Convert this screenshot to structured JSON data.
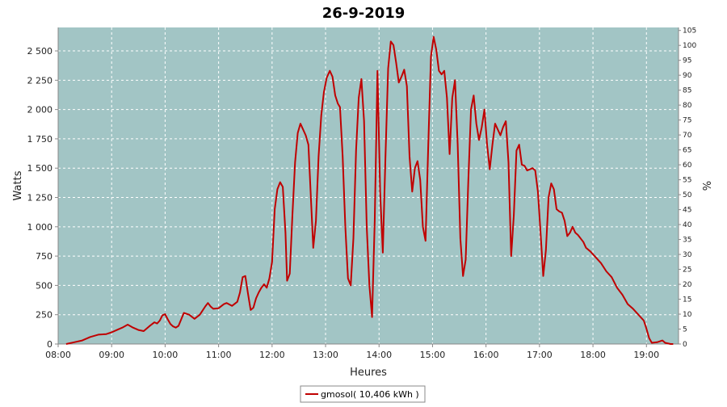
{
  "colors": {
    "plot_background": "#a2c5c5",
    "grid": "#ffffff",
    "series": "#c00000"
  },
  "chart_data": {
    "type": "line",
    "title": "26-9-2019",
    "xlabel": "Heures",
    "ylabel": "Watts",
    "y2label": "%",
    "xlim": [
      8.0,
      19.6
    ],
    "ylim": [
      0,
      2700
    ],
    "y2lim": [
      0,
      106
    ],
    "x_ticks": [
      8,
      9,
      10,
      11,
      12,
      13,
      14,
      15,
      16,
      17,
      18,
      19
    ],
    "x_tick_labels": [
      "08:00",
      "09:00",
      "10:00",
      "11:00",
      "12:00",
      "13:00",
      "14:00",
      "15:00",
      "16:00",
      "17:00",
      "18:00",
      "19:00"
    ],
    "y_ticks": [
      0,
      250,
      500,
      750,
      1000,
      1250,
      1500,
      1750,
      2000,
      2250,
      2500
    ],
    "y_tick_labels": [
      "0",
      "250",
      "500",
      "750",
      "1 000",
      "1 250",
      "1 500",
      "1 750",
      "2 000",
      "2 250",
      "2 500"
    ],
    "y2_ticks": [
      0,
      5,
      10,
      15,
      20,
      25,
      30,
      35,
      40,
      45,
      50,
      55,
      60,
      65,
      70,
      75,
      80,
      85,
      90,
      95,
      100,
      105
    ],
    "grid": true,
    "legend_position": "bottom-center",
    "series": [
      {
        "name": "gmosol( 10,406 kWh )",
        "points": [
          [
            8.15,
            0
          ],
          [
            8.3,
            15
          ],
          [
            8.45,
            30
          ],
          [
            8.6,
            60
          ],
          [
            8.75,
            80
          ],
          [
            8.9,
            85
          ],
          [
            9.0,
            100
          ],
          [
            9.1,
            120
          ],
          [
            9.2,
            140
          ],
          [
            9.3,
            165
          ],
          [
            9.4,
            140
          ],
          [
            9.5,
            120
          ],
          [
            9.6,
            110
          ],
          [
            9.7,
            150
          ],
          [
            9.8,
            185
          ],
          [
            9.85,
            175
          ],
          [
            9.9,
            200
          ],
          [
            9.95,
            245
          ],
          [
            10.0,
            255
          ],
          [
            10.05,
            210
          ],
          [
            10.1,
            170
          ],
          [
            10.15,
            150
          ],
          [
            10.2,
            140
          ],
          [
            10.25,
            155
          ],
          [
            10.3,
            210
          ],
          [
            10.35,
            265
          ],
          [
            10.45,
            250
          ],
          [
            10.55,
            215
          ],
          [
            10.65,
            250
          ],
          [
            10.75,
            320
          ],
          [
            10.8,
            350
          ],
          [
            10.85,
            320
          ],
          [
            10.9,
            300
          ],
          [
            11.0,
            305
          ],
          [
            11.1,
            340
          ],
          [
            11.15,
            350
          ],
          [
            11.25,
            325
          ],
          [
            11.35,
            360
          ],
          [
            11.4,
            440
          ],
          [
            11.45,
            570
          ],
          [
            11.5,
            580
          ],
          [
            11.55,
            430
          ],
          [
            11.6,
            290
          ],
          [
            11.65,
            310
          ],
          [
            11.7,
            390
          ],
          [
            11.75,
            440
          ],
          [
            11.8,
            480
          ],
          [
            11.85,
            510
          ],
          [
            11.9,
            480
          ],
          [
            11.95,
            560
          ],
          [
            12.0,
            700
          ],
          [
            12.05,
            1150
          ],
          [
            12.1,
            1320
          ],
          [
            12.15,
            1380
          ],
          [
            12.2,
            1340
          ],
          [
            12.25,
            950
          ],
          [
            12.28,
            540
          ],
          [
            12.33,
            600
          ],
          [
            12.38,
            1100
          ],
          [
            12.43,
            1550
          ],
          [
            12.48,
            1800
          ],
          [
            12.53,
            1880
          ],
          [
            12.58,
            1830
          ],
          [
            12.63,
            1780
          ],
          [
            12.68,
            1700
          ],
          [
            12.73,
            1200
          ],
          [
            12.77,
            820
          ],
          [
            12.82,
            1050
          ],
          [
            12.87,
            1600
          ],
          [
            12.92,
            1950
          ],
          [
            12.97,
            2150
          ],
          [
            13.02,
            2270
          ],
          [
            13.08,
            2330
          ],
          [
            13.13,
            2280
          ],
          [
            13.18,
            2120
          ],
          [
            13.23,
            2050
          ],
          [
            13.27,
            2020
          ],
          [
            13.32,
            1600
          ],
          [
            13.37,
            1000
          ],
          [
            13.42,
            560
          ],
          [
            13.47,
            500
          ],
          [
            13.52,
            900
          ],
          [
            13.57,
            1650
          ],
          [
            13.62,
            2100
          ],
          [
            13.67,
            2260
          ],
          [
            13.72,
            1900
          ],
          [
            13.77,
            1000
          ],
          [
            13.82,
            500
          ],
          [
            13.87,
            230
          ],
          [
            13.92,
            1050
          ],
          [
            13.97,
            2330
          ],
          [
            14.02,
            1300
          ],
          [
            14.07,
            780
          ],
          [
            14.12,
            1600
          ],
          [
            14.17,
            2350
          ],
          [
            14.22,
            2580
          ],
          [
            14.27,
            2550
          ],
          [
            14.32,
            2400
          ],
          [
            14.37,
            2230
          ],
          [
            14.42,
            2280
          ],
          [
            14.47,
            2340
          ],
          [
            14.52,
            2200
          ],
          [
            14.57,
            1600
          ],
          [
            14.62,
            1300
          ],
          [
            14.67,
            1500
          ],
          [
            14.72,
            1560
          ],
          [
            14.77,
            1400
          ],
          [
            14.82,
            1000
          ],
          [
            14.87,
            880
          ],
          [
            14.92,
            1700
          ],
          [
            14.97,
            2450
          ],
          [
            15.02,
            2620
          ],
          [
            15.07,
            2510
          ],
          [
            15.12,
            2330
          ],
          [
            15.17,
            2300
          ],
          [
            15.22,
            2330
          ],
          [
            15.27,
            2100
          ],
          [
            15.32,
            1620
          ],
          [
            15.37,
            2100
          ],
          [
            15.42,
            2250
          ],
          [
            15.47,
            1700
          ],
          [
            15.52,
            900
          ],
          [
            15.57,
            580
          ],
          [
            15.62,
            720
          ],
          [
            15.67,
            1400
          ],
          [
            15.72,
            2000
          ],
          [
            15.77,
            2120
          ],
          [
            15.82,
            1880
          ],
          [
            15.87,
            1740
          ],
          [
            15.92,
            1850
          ],
          [
            15.97,
            2000
          ],
          [
            16.02,
            1700
          ],
          [
            16.07,
            1490
          ],
          [
            16.12,
            1700
          ],
          [
            16.17,
            1880
          ],
          [
            16.22,
            1830
          ],
          [
            16.27,
            1780
          ],
          [
            16.32,
            1850
          ],
          [
            16.37,
            1900
          ],
          [
            16.42,
            1550
          ],
          [
            16.47,
            750
          ],
          [
            16.52,
            1100
          ],
          [
            16.57,
            1650
          ],
          [
            16.62,
            1700
          ],
          [
            16.67,
            1530
          ],
          [
            16.72,
            1520
          ],
          [
            16.77,
            1480
          ],
          [
            16.82,
            1490
          ],
          [
            16.87,
            1500
          ],
          [
            16.92,
            1480
          ],
          [
            16.97,
            1300
          ],
          [
            17.02,
            950
          ],
          [
            17.07,
            580
          ],
          [
            17.12,
            800
          ],
          [
            17.17,
            1250
          ],
          [
            17.22,
            1370
          ],
          [
            17.27,
            1320
          ],
          [
            17.32,
            1150
          ],
          [
            17.37,
            1130
          ],
          [
            17.42,
            1120
          ],
          [
            17.47,
            1050
          ],
          [
            17.52,
            920
          ],
          [
            17.57,
            950
          ],
          [
            17.62,
            1000
          ],
          [
            17.67,
            950
          ],
          [
            17.72,
            930
          ],
          [
            17.77,
            900
          ],
          [
            17.82,
            870
          ],
          [
            17.87,
            820
          ],
          [
            17.95,
            790
          ],
          [
            18.05,
            740
          ],
          [
            18.15,
            690
          ],
          [
            18.25,
            620
          ],
          [
            18.35,
            570
          ],
          [
            18.45,
            480
          ],
          [
            18.55,
            420
          ],
          [
            18.65,
            340
          ],
          [
            18.75,
            300
          ],
          [
            18.85,
            250
          ],
          [
            18.95,
            200
          ],
          [
            19.0,
            130
          ],
          [
            19.05,
            50
          ],
          [
            19.1,
            10
          ],
          [
            19.2,
            15
          ],
          [
            19.3,
            30
          ],
          [
            19.35,
            10
          ],
          [
            19.45,
            0
          ],
          [
            19.5,
            0
          ]
        ]
      }
    ]
  }
}
